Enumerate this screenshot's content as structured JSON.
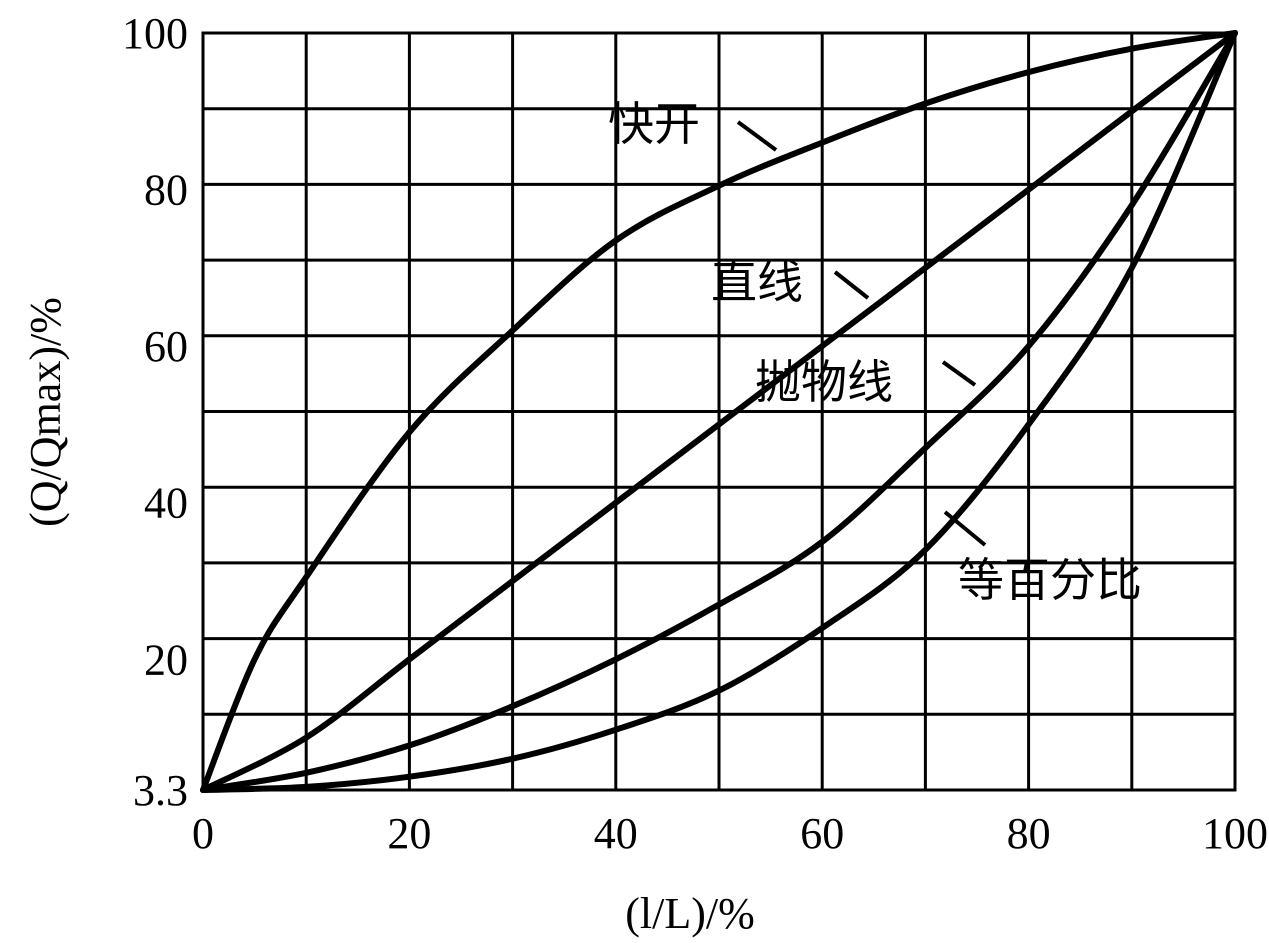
{
  "chart_data": {
    "type": "line",
    "title": "",
    "xlabel": "(l/L)/%",
    "ylabel": "(Q/Qmax)/%",
    "xlim": [
      0,
      100
    ],
    "ylim": [
      3.3,
      100
    ],
    "x_ticks": [
      "0",
      "20",
      "40",
      "60",
      "80",
      "100"
    ],
    "y_ticks": [
      "3.3",
      "20",
      "40",
      "60",
      "80",
      "100"
    ],
    "y_tick_values": [
      3.3,
      20,
      40,
      60,
      80,
      100
    ],
    "grid": true,
    "series": [
      {
        "name": "快开",
        "x": [
          0,
          5,
          10,
          20,
          30,
          40,
          50,
          60,
          70,
          80,
          90,
          100
        ],
        "y": [
          3.3,
          20,
          30.5,
          49,
          62,
          73.5,
          80.5,
          86,
          91,
          95,
          98,
          100
        ]
      },
      {
        "name": "直线",
        "x": [
          0,
          10,
          20,
          30,
          40,
          50,
          60,
          70,
          80,
          90,
          100
        ],
        "y": [
          3.3,
          10,
          20,
          30,
          40,
          50,
          60,
          70,
          80,
          90,
          100
        ]
      },
      {
        "name": "抛物线",
        "x": [
          0,
          10,
          20,
          30,
          40,
          50,
          60,
          70,
          80,
          90,
          100
        ],
        "y": [
          3.3,
          5.5,
          9,
          14,
          20,
          27,
          35,
          47,
          60,
          78,
          100
        ]
      },
      {
        "name": "等百分比",
        "x": [
          0,
          10,
          20,
          30,
          40,
          50,
          60,
          70,
          80,
          90,
          100
        ],
        "y": [
          3.3,
          3.7,
          5,
          7.3,
          11,
          16,
          24,
          34,
          50,
          70,
          100
        ]
      }
    ],
    "annotations": [
      "快开",
      "直线",
      "抛物线",
      "等百分比"
    ]
  }
}
